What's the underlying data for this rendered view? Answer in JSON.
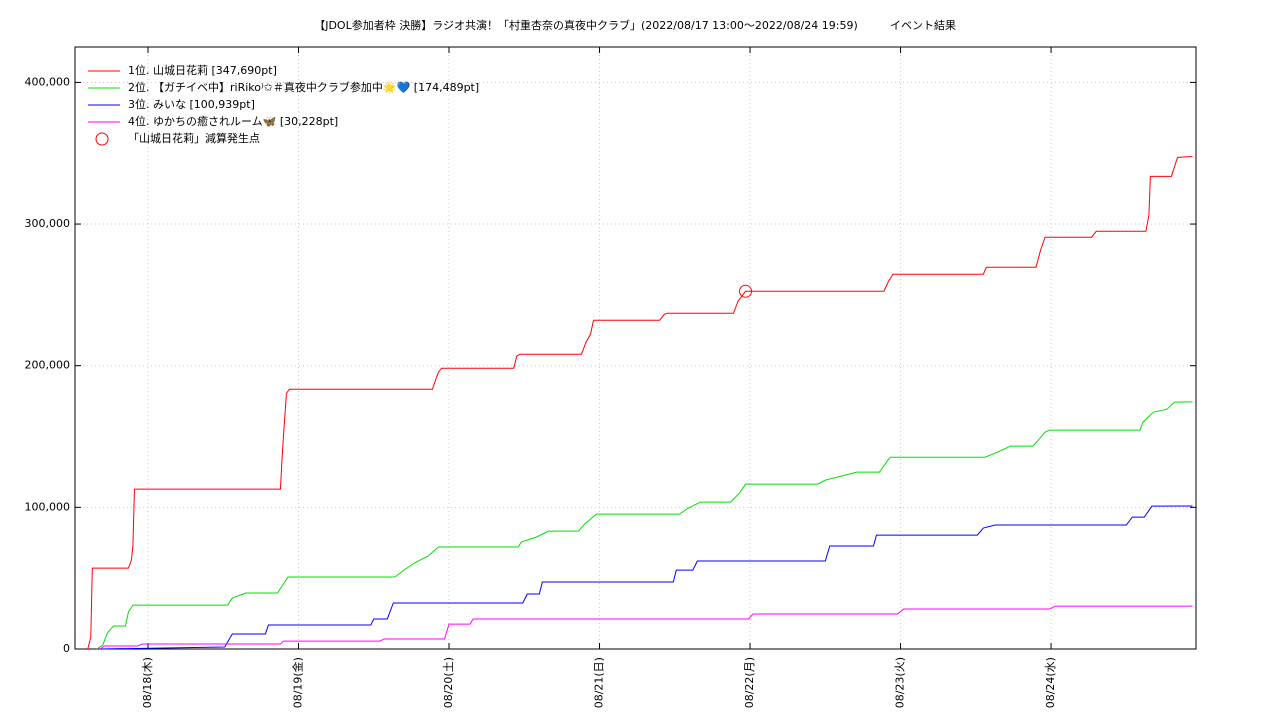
{
  "chart_data": {
    "type": "line",
    "title": "【JDOL参加者枠 決勝】ラジオ共演！「村重杏奈の真夜中クラブ」(2022/08/17 13:00～2022/08/24 19:59)",
    "subtitle": "イベント結果",
    "xlim": [
      17.515,
      24.963
    ],
    "xticks": [
      {
        "value": 18,
        "label": "08/18(木)"
      },
      {
        "value": 19,
        "label": "08/19(金)"
      },
      {
        "value": 20,
        "label": "08/20(土)"
      },
      {
        "value": 21,
        "label": "08/21(日)"
      },
      {
        "value": 22,
        "label": "08/22(月)"
      },
      {
        "value": 23,
        "label": "08/23(火)"
      },
      {
        "value": 24,
        "label": "08/24(水)"
      }
    ],
    "ylim": [
      0,
      425000
    ],
    "yticks": [
      0,
      {
        "value": 100000,
        "label": "100,000"
      },
      {
        "value": 200000,
        "label": "200,000"
      },
      {
        "value": 300000,
        "label": "300,000"
      },
      {
        "value": 400000,
        "label": "400,000"
      }
    ],
    "grid": true,
    "legend": "upper left",
    "series": [
      {
        "name": "1位. 山城日花莉 [347,690pt]",
        "color": "#ff0000",
        "x": [
          17.6,
          17.62,
          17.63,
          17.87,
          17.89,
          17.9,
          17.91,
          18.88,
          18.89,
          18.9,
          18.92,
          18.94,
          19.89,
          19.91,
          19.93,
          19.95,
          20.43,
          20.45,
          20.47,
          20.88,
          20.91,
          20.94,
          20.96,
          21.4,
          21.43,
          21.45,
          21.89,
          21.92,
          21.95,
          21.97,
          22.89,
          22.92,
          22.95,
          23.55,
          23.57,
          23.9,
          23.93,
          23.96,
          24.27,
          24.3,
          24.63,
          24.65,
          24.66,
          24.8,
          24.84,
          24.94
        ],
        "values": [
          0,
          8500,
          57100,
          57100,
          62800,
          73400,
          112900,
          112900,
          133300,
          150300,
          180600,
          183400,
          183400,
          189800,
          195400,
          198200,
          198200,
          206700,
          208100,
          208100,
          216600,
          222200,
          232100,
          232100,
          236300,
          237000,
          237000,
          245500,
          249700,
          252600,
          252600,
          259600,
          264600,
          264600,
          269500,
          269500,
          281500,
          290700,
          290700,
          294900,
          294900,
          306200,
          333700,
          333700,
          347100,
          347690
        ]
      },
      {
        "name": "2位. 【ガチイベ中】riRiko⁾✩＃真夜中クラブ参加中🌟💙 [174,489pt]",
        "color": "#00e000",
        "x": [
          17.66,
          17.7,
          17.73,
          17.77,
          17.85,
          17.87,
          17.9,
          18.53,
          18.56,
          18.65,
          18.86,
          18.89,
          18.93,
          19.64,
          19.71,
          19.77,
          19.86,
          19.93,
          20.46,
          20.48,
          20.58,
          20.66,
          20.86,
          20.9,
          20.98,
          21.53,
          21.59,
          21.67,
          21.87,
          21.93,
          21.97,
          22.45,
          22.5,
          22.71,
          22.86,
          22.93,
          23.56,
          23.63,
          23.73,
          23.88,
          23.96,
          23.99,
          24.59,
          24.61,
          24.68,
          24.77,
          24.82,
          24.94
        ],
        "values": [
          0,
          2800,
          11300,
          16200,
          16200,
          26100,
          31000,
          31000,
          36000,
          39500,
          39500,
          44400,
          50800,
          50800,
          56400,
          60700,
          65600,
          72000,
          72000,
          75500,
          79000,
          83200,
          83200,
          88200,
          95200,
          95200,
          99500,
          103700,
          103700,
          110100,
          116400,
          116400,
          119200,
          124900,
          124900,
          135400,
          135400,
          138300,
          143200,
          143200,
          153100,
          154500,
          154500,
          160100,
          167200,
          169300,
          174300,
          174489
        ]
      },
      {
        "name": "3位. みいな [100,939pt]",
        "color": "#0000ff",
        "x": [
          17.68,
          18.51,
          18.56,
          18.78,
          18.8,
          19.48,
          19.5,
          19.59,
          19.63,
          20.49,
          20.52,
          20.6,
          20.62,
          21.49,
          21.51,
          21.62,
          21.65,
          22.5,
          22.53,
          22.82,
          22.84,
          23.51,
          23.55,
          23.63,
          24.5,
          24.54,
          24.62,
          24.67,
          24.94
        ],
        "values": [
          0,
          1400,
          10600,
          10600,
          16900,
          16900,
          21200,
          21200,
          32500,
          32500,
          38800,
          38800,
          47300,
          47300,
          55700,
          55700,
          62100,
          62100,
          72700,
          72700,
          80400,
          80400,
          85400,
          87500,
          87500,
          93100,
          93100,
          100900,
          100939
        ]
      },
      {
        "name": "4位. ゆかちの癒されルーム🦋 [30,228pt]",
        "color": "#ff00ff",
        "x": [
          17.68,
          17.71,
          17.93,
          17.96,
          18.88,
          18.9,
          19.54,
          19.57,
          19.97,
          20.0,
          20.14,
          20.16,
          21.99,
          22.02,
          22.98,
          23.02,
          23.99,
          24.03,
          24.94
        ],
        "values": [
          0,
          2100,
          2100,
          3500,
          3500,
          5600,
          5600,
          7100,
          7100,
          17600,
          17600,
          21200,
          21200,
          24700,
          24700,
          28200,
          28200,
          30300,
          30228
        ]
      }
    ],
    "markers": {
      "name": "「山城日花莉」減算発生点",
      "color": "#ff0000",
      "x": [
        21.97
      ],
      "values": [
        252600
      ]
    }
  }
}
